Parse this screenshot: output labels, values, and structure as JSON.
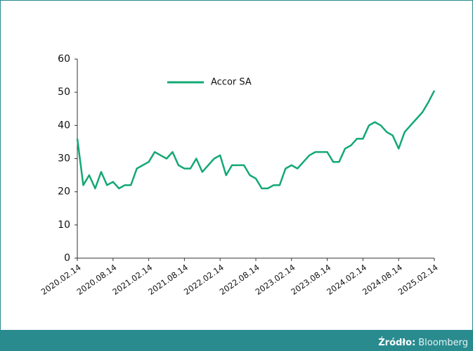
{
  "chart_data": {
    "type": "line",
    "x": [
      "2020.02.14",
      "2020.03.14",
      "2020.04.14",
      "2020.05.14",
      "2020.06.14",
      "2020.07.14",
      "2020.08.14",
      "2020.09.14",
      "2020.10.14",
      "2020.11.14",
      "2020.12.14",
      "2021.01.14",
      "2021.02.14",
      "2021.03.14",
      "2021.04.14",
      "2021.05.14",
      "2021.06.14",
      "2021.07.14",
      "2021.08.14",
      "2021.09.14",
      "2021.10.14",
      "2021.11.14",
      "2021.12.14",
      "2022.01.14",
      "2022.02.14",
      "2022.03.14",
      "2022.04.14",
      "2022.05.14",
      "2022.06.14",
      "2022.07.14",
      "2022.08.14",
      "2022.09.14",
      "2022.10.14",
      "2022.11.14",
      "2022.12.14",
      "2023.01.14",
      "2023.02.14",
      "2023.03.14",
      "2023.04.14",
      "2023.05.14",
      "2023.06.14",
      "2023.07.14",
      "2023.08.14",
      "2023.09.14",
      "2023.10.14",
      "2023.11.14",
      "2023.12.14",
      "2024.01.14",
      "2024.02.14",
      "2024.03.14",
      "2024.04.14",
      "2024.05.14",
      "2024.06.14",
      "2024.07.14",
      "2024.08.14",
      "2024.09.14",
      "2024.10.14",
      "2024.11.14",
      "2024.12.14",
      "2025.01.14",
      "2025.02.14"
    ],
    "series": [
      {
        "name": "Accor SA",
        "color": "#14a874",
        "values": [
          36,
          22,
          25,
          21,
          26,
          22,
          23,
          21,
          22,
          22,
          27,
          28,
          29,
          32,
          31,
          30,
          32,
          28,
          27,
          27,
          30,
          26,
          28,
          30,
          31,
          25,
          28,
          28,
          28,
          25,
          24,
          21,
          21,
          22,
          22,
          27,
          28,
          27,
          29,
          31,
          32,
          32,
          32,
          29,
          29,
          33,
          34,
          36,
          36,
          40,
          41,
          40,
          38,
          37,
          33,
          38,
          40,
          42,
          44,
          47,
          50.5
        ]
      }
    ],
    "xlim": [
      "2020.02.14",
      "2025.02.14"
    ],
    "xticks": [
      "2020.02.14",
      "2020.08.14",
      "2021.02.14",
      "2021.08.14",
      "2022.02.14",
      "2022.08.14",
      "2023.02.14",
      "2023.08.14",
      "2024.02.14",
      "2024.08.14",
      "2025.02.14"
    ],
    "ylim": [
      0,
      60
    ],
    "yticks": [
      0,
      10,
      20,
      30,
      40,
      50,
      60
    ],
    "source_label": "Źródło:",
    "source": "Bloomberg"
  }
}
